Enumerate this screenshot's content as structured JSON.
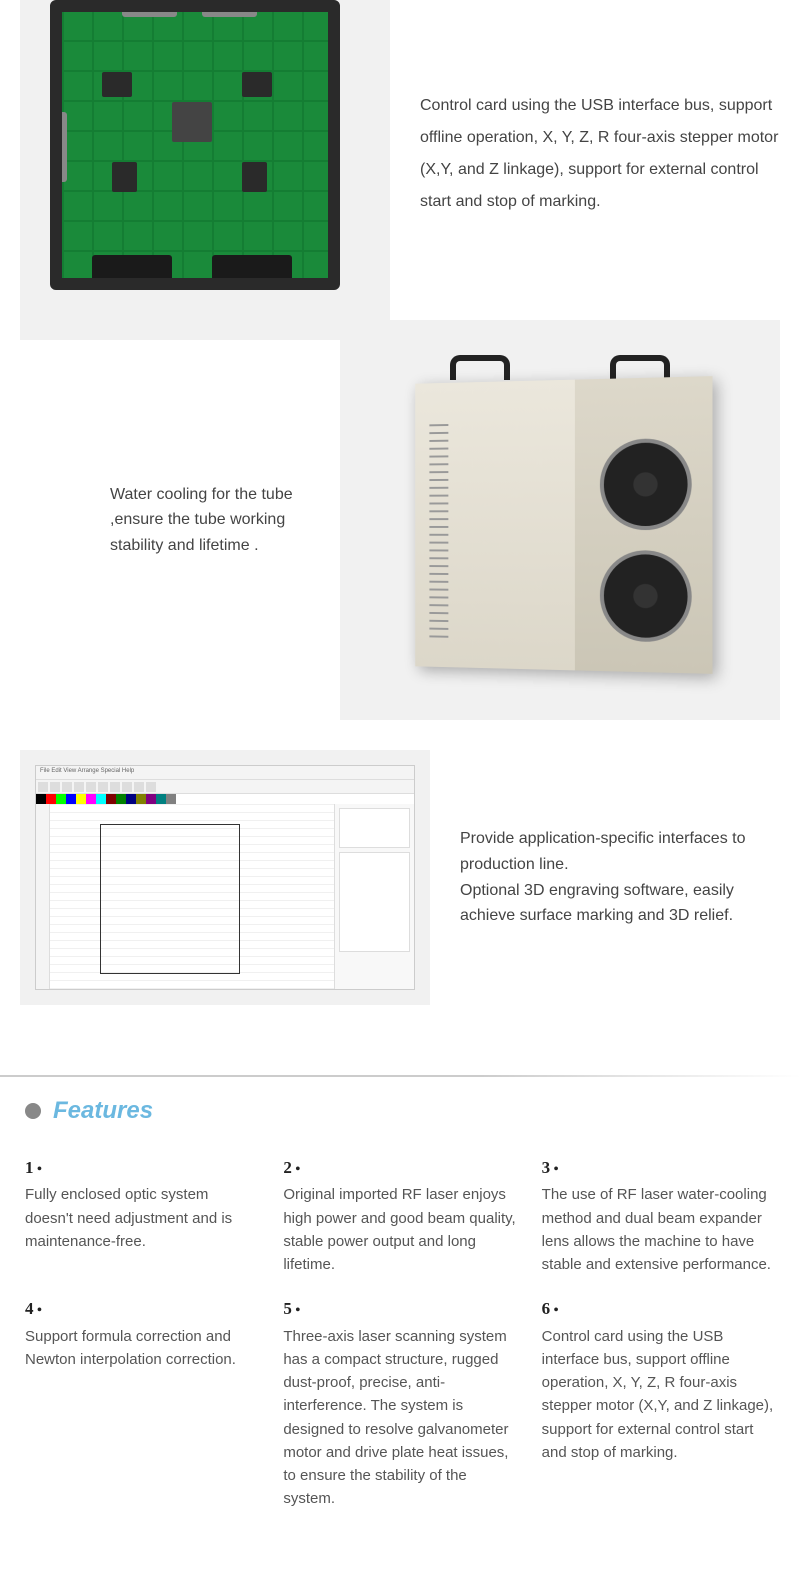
{
  "section1": {
    "text": "Control card using the USB interface bus, support offline operation, X, Y, Z, R four-axis stepper motor (X,Y, and Z linkage), support for external control start and stop of marking."
  },
  "section2": {
    "text": "Water cooling for the tube ,ensure the tube working stability and lifetime ."
  },
  "section3": {
    "text1": "Provide application-specific interfaces to production line.",
    "text2": "Optional 3D engraving software, easily achieve surface marking and 3D relief."
  },
  "software": {
    "menubar": "File Edit View Arrange Special Help",
    "colors": [
      "#000000",
      "#ff0000",
      "#00ff00",
      "#0000ff",
      "#ffff00",
      "#ff00ff",
      "#00ffff",
      "#800000",
      "#008000",
      "#000080",
      "#808000",
      "#800080",
      "#008080",
      "#808080",
      "#ffffff"
    ]
  },
  "featuresTitle": "Features",
  "features": [
    {
      "num": "1",
      "text": "Fully enclosed optic  system doesn't need adjustment and is maintenance-free."
    },
    {
      "num": "2",
      "text": "Original imported RF laser enjoys high power and good beam quality, stable power output and long lifetime."
    },
    {
      "num": "3",
      "text": "The use of RF laser water-cooling method and dual beam expander lens allows the machine to have stable and extensive performance."
    },
    {
      "num": "4",
      "text": "Support formula correction and Newton interpolation correction."
    },
    {
      "num": "5",
      "text": "Three-axis laser scanning system has a compact structure, rugged dust-proof, precise, anti-interference. The system is designed to resolve galvanometer motor and drive plate heat issues, to ensure the stability of the system."
    },
    {
      "num": "6",
      "text": " Control card using the USB interface bus, support offline operation, X, Y, Z, R four-axis stepper motor (X,Y, and Z linkage), support for external control start and stop of marking."
    }
  ],
  "colors": {
    "featuresTitle": "#6bb8e0",
    "bodyText": "#555555",
    "bgGray": "#f1f1f1"
  }
}
